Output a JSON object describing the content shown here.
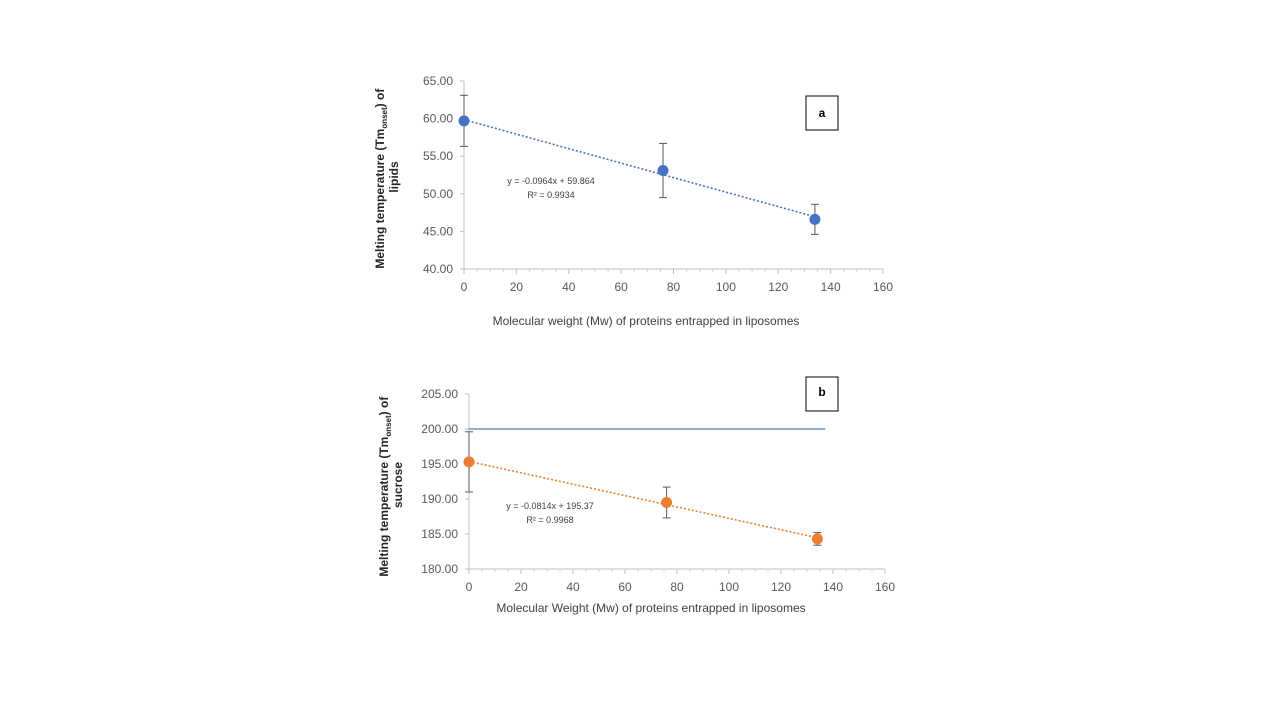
{
  "chart_data": [
    {
      "type": "scatter",
      "panel_label": "a",
      "xlabel": "Molecular weight (Mw) of proteins entrapped in liposomes",
      "ylabel_parts": [
        "Melting temperature (Tm",
        "onset",
        ") of",
        "lipids"
      ],
      "xlim": [
        0,
        160
      ],
      "ylim": [
        40,
        65
      ],
      "x_ticks": [
        "0",
        "20",
        "40",
        "60",
        "80",
        "100",
        "120",
        "140",
        "160"
      ],
      "y_ticks": [
        "40.00",
        "45.00",
        "50.00",
        "55.00",
        "60.00",
        "65.00"
      ],
      "series": [
        {
          "color": "#4472C4",
          "points": [
            {
              "x": 0,
              "y": 59.7,
              "err": 3.4
            },
            {
              "x": 76,
              "y": 53.1,
              "err": 3.6
            },
            {
              "x": 134,
              "y": 46.6,
              "err": 2.0
            }
          ]
        }
      ],
      "trendline": {
        "slope": -0.0964,
        "intercept": 59.864,
        "x_range": [
          0,
          134
        ],
        "color": "#4472C4",
        "equation": "y = -0.0964x + 59.864",
        "r2": "R² = 0.9934"
      }
    },
    {
      "type": "scatter",
      "panel_label": "b",
      "xlabel": "Molecular Weight (Mw) of proteins entrapped in liposomes",
      "ylabel_parts": [
        "Melting temperature (Tm",
        "onset",
        ") of",
        "sucrose"
      ],
      "xlim": [
        0,
        160
      ],
      "ylim": [
        180,
        205
      ],
      "x_ticks": [
        "0",
        "20",
        "40",
        "60",
        "80",
        "100",
        "120",
        "140",
        "160"
      ],
      "y_ticks": [
        "180.00",
        "185.00",
        "190.00",
        "195.00",
        "200.00",
        "205.00"
      ],
      "reference_line": {
        "y": 200,
        "x_range": [
          0,
          137
        ],
        "color": "#4A7DB8"
      },
      "series": [
        {
          "color": "#ED7D31",
          "points": [
            {
              "x": 0,
              "y": 195.3,
              "err": 4.3
            },
            {
              "x": 76,
              "y": 189.5,
              "err": 2.2
            },
            {
              "x": 134,
              "y": 184.3,
              "err": 0.9
            }
          ]
        }
      ],
      "trendline": {
        "slope": -0.0814,
        "intercept": 195.37,
        "x_range": [
          0,
          134
        ],
        "color": "#ED7D31",
        "equation": "y = -0.0814x + 195.37",
        "r2": "R² = 0.9968"
      }
    }
  ]
}
